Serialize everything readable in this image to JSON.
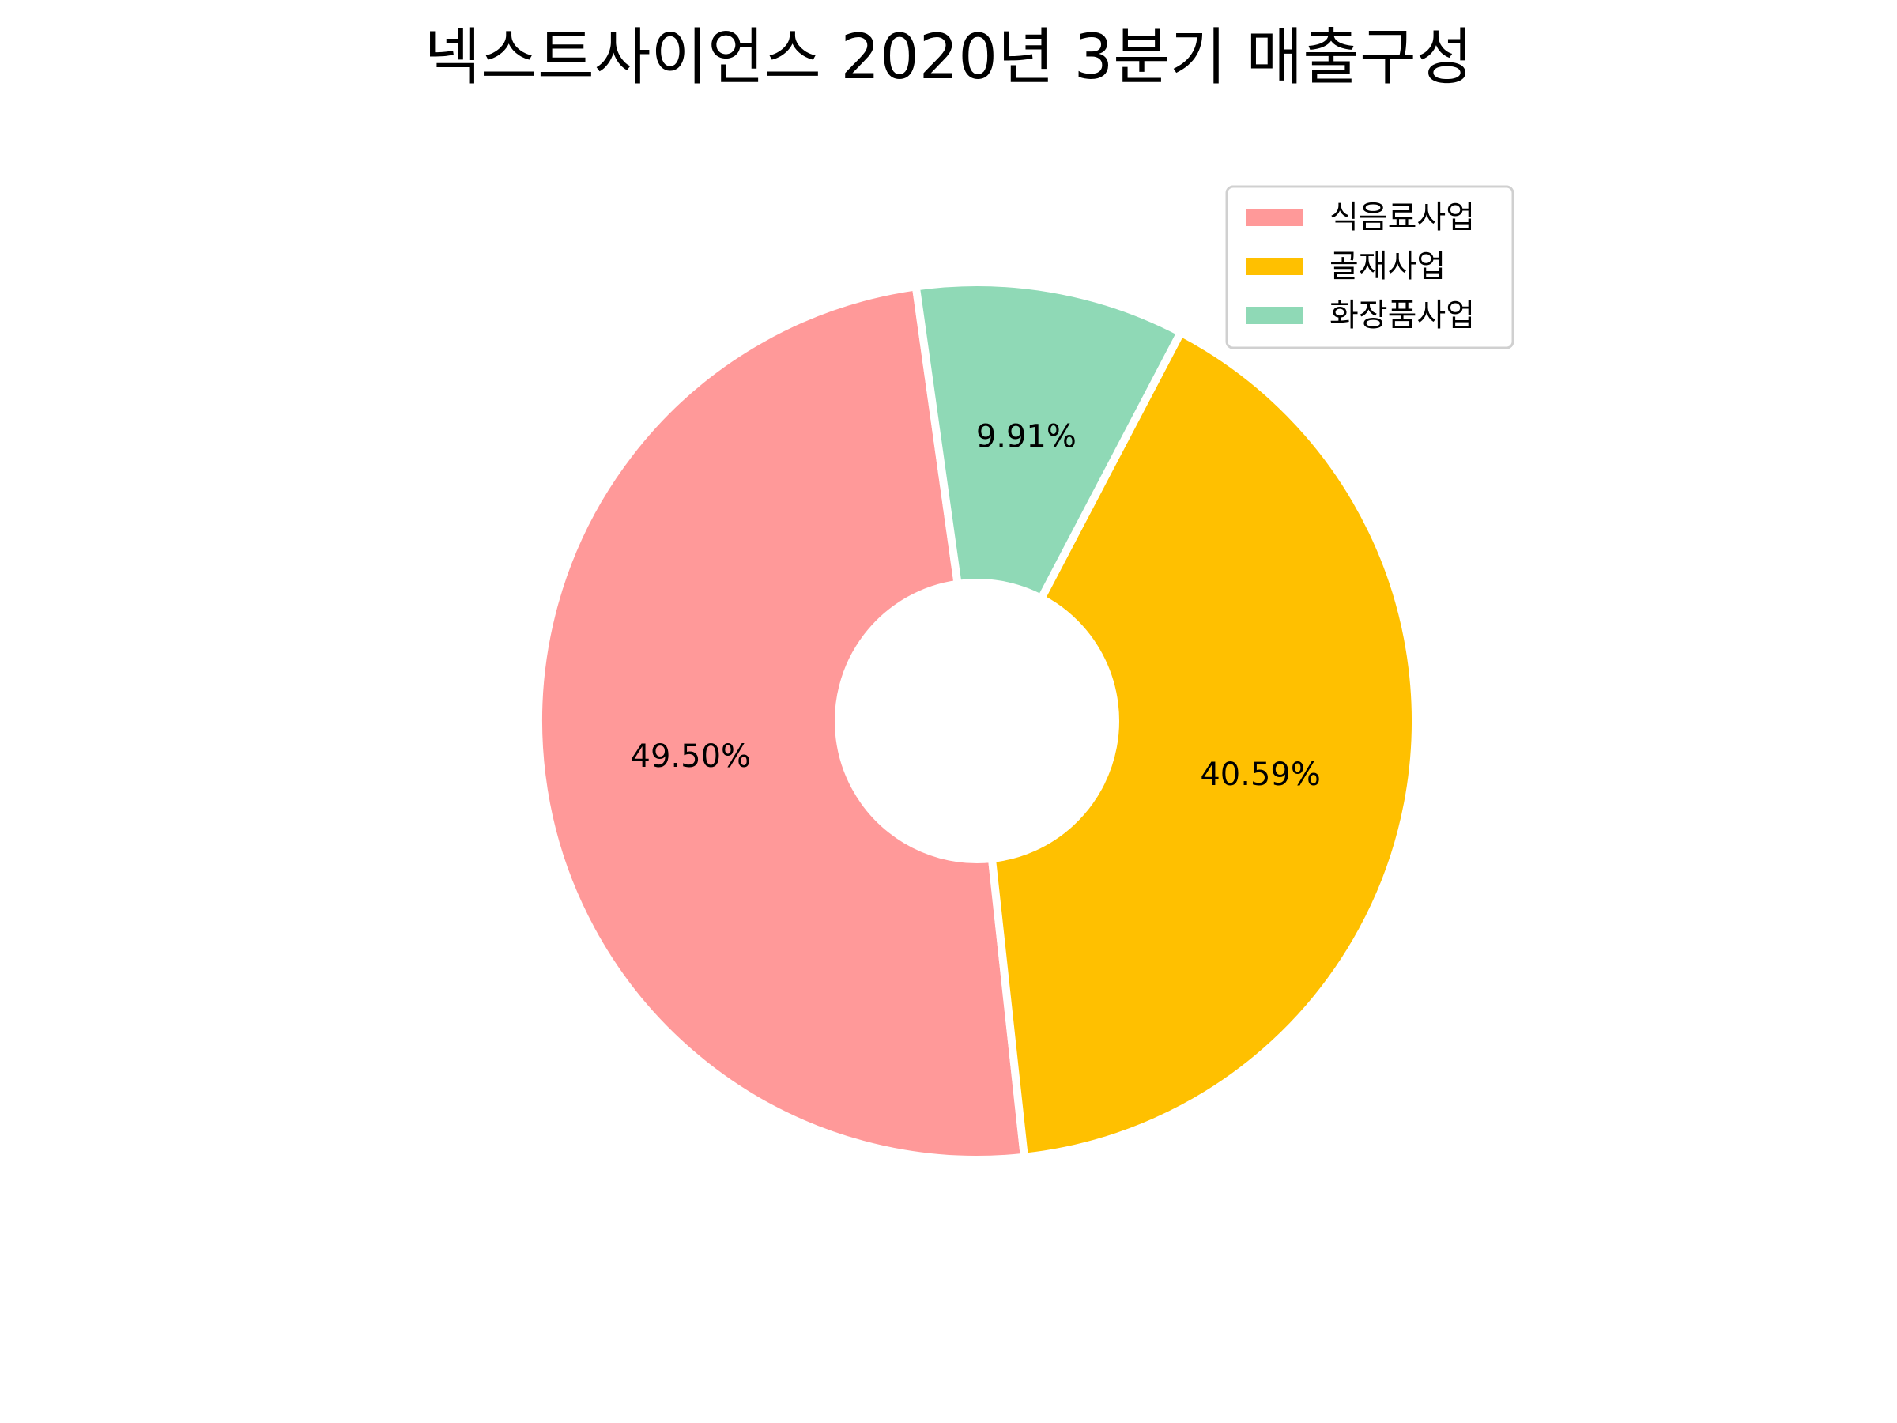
{
  "chart_data": {
    "type": "pie",
    "title": "넥스트사이언스 2020년 3분기 매출구성",
    "donut": true,
    "categories": [
      "식음료사업",
      "골재사업",
      "화장품사업"
    ],
    "values": [
      49.5,
      40.59,
      9.91
    ],
    "labels": [
      "49.50%",
      "40.59%",
      "9.91%"
    ],
    "colors": [
      "#ff9999",
      "#ffc000",
      "#8fd9b6"
    ],
    "legend_position": "upper-right"
  }
}
